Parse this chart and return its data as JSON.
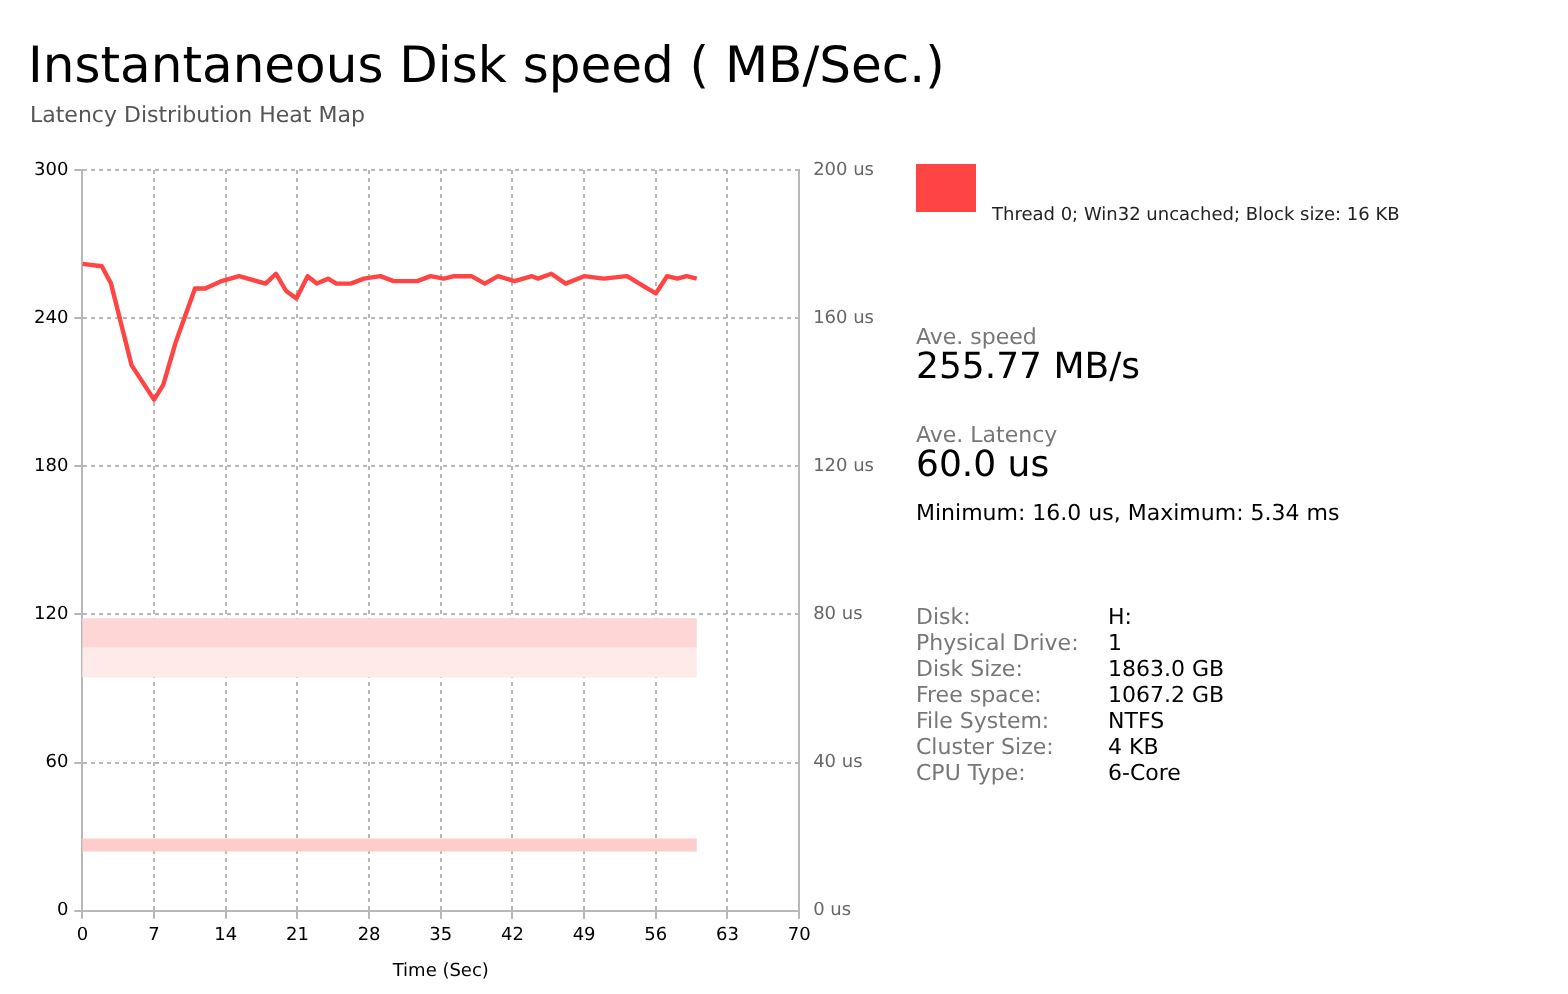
{
  "chart_data": {
    "type": "line",
    "title": "Instantaneous Disk speed ( MB/Sec.)",
    "subtitle": "Latency Distribution Heat Map",
    "xlabel": "Time (Sec)",
    "xlim": [
      0,
      70
    ],
    "xticks": [
      0,
      7,
      14,
      21,
      28,
      35,
      42,
      49,
      56,
      63,
      70
    ],
    "ylim": [
      0,
      300
    ],
    "yticks": [
      0,
      60,
      120,
      180,
      240,
      300
    ],
    "y2lim": [
      0,
      200
    ],
    "y2ticks": [
      {
        "value": 0,
        "label": "0 us"
      },
      {
        "value": 40,
        "label": "40 us"
      },
      {
        "value": 80,
        "label": "80 us"
      },
      {
        "value": 120,
        "label": "120 us"
      },
      {
        "value": 160,
        "label": "160 us"
      },
      {
        "value": 200,
        "label": "200 us"
      }
    ],
    "grid": true,
    "legend": false,
    "marker": "none",
    "series": [
      {
        "color": "#ff4444",
        "x": [
          0,
          1.9,
          2.8,
          4.8,
          7,
          7.9,
          9.1,
          11,
          12,
          13.6,
          15.3,
          17.9,
          18.9,
          19.9,
          20.9,
          22,
          22.9,
          24,
          24.8,
          26.2,
          27.5,
          29.1,
          30.4,
          32.7,
          34,
          35.3,
          36.3,
          38,
          39.3,
          40.6,
          42.2,
          43.9,
          44.5,
          45.8,
          47.2,
          49,
          50.9,
          53.2,
          54.8,
          56,
          57.1,
          58.1,
          59,
          60
        ],
        "values": [
          262,
          261,
          254,
          221,
          207,
          213,
          230,
          252,
          252,
          255,
          257,
          254,
          258,
          251,
          248,
          257,
          254,
          256,
          254,
          254,
          256,
          257,
          255,
          255,
          257,
          256,
          257,
          257,
          254,
          257,
          255,
          257,
          256,
          258,
          254,
          257,
          256,
          257,
          253,
          250,
          257,
          256,
          257,
          256
        ]
      }
    ],
    "bands": [
      {
        "axis": "y2",
        "from": 16,
        "to": 19.5,
        "color": "#ffcccc"
      },
      {
        "axis": "y2",
        "from": 71,
        "to": 79,
        "color": "#ffd6d6"
      },
      {
        "axis": "y2",
        "from": 63,
        "to": 71,
        "color": "#ffeaea"
      }
    ],
    "annotations": [
      "Thread 0; Win32 uncached; Block size: 16 KB",
      "Ave. speed",
      "255.77 MB/s",
      "Ave. Latency",
      "60.0 us",
      "Minimum: 16.0 us, Maximum: 5.34 ms",
      "Disk:",
      "H:",
      "Physical Drive:",
      "1",
      "Disk Size:",
      "1863.0 GB",
      "Free space:",
      "1067.2 GB",
      "File System:",
      "NTFS",
      "Cluster Size:",
      "4 KB",
      "CPU Type:",
      "6-Core"
    ]
  }
}
